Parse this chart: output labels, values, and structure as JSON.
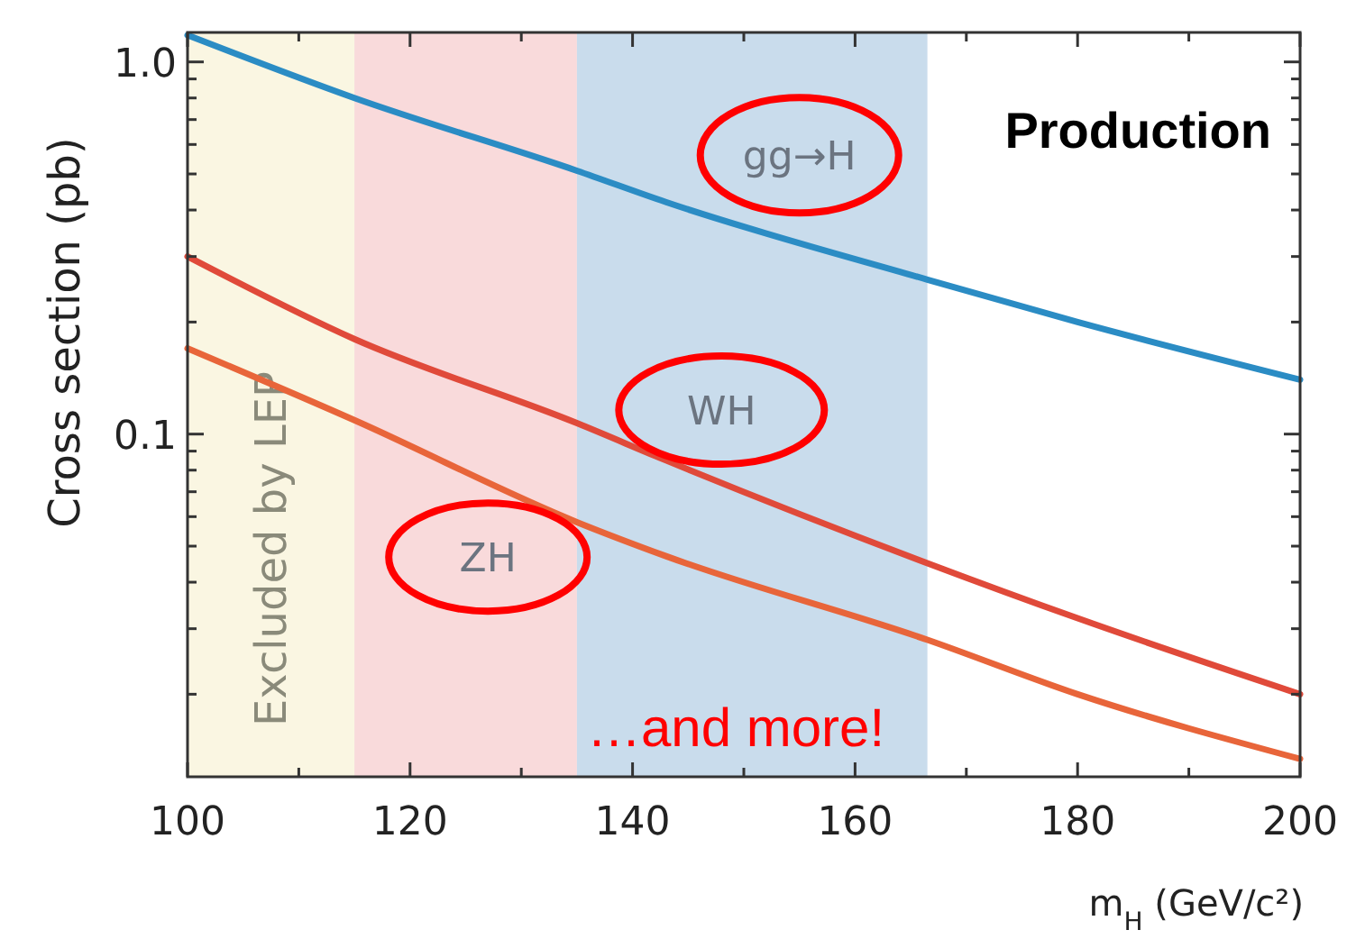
{
  "chart_data": {
    "type": "line",
    "xlabel": "m$_{H}$  (GeV/c²)",
    "ylabel": "Cross section (pb)",
    "log": "y",
    "xlim": [
      100,
      200
    ],
    "ylim": [
      0.012,
      1.2
    ],
    "xticks": [
      100,
      {
        "value": 110,
        "label": null
      },
      120,
      {
        "value": 130,
        "label": null
      },
      140,
      {
        "value": 150,
        "label": null
      },
      160,
      {
        "value": 170,
        "label": null
      },
      180,
      {
        "value": 190,
        "label": null
      },
      200
    ],
    "yticks": [
      {
        "value": 0.02,
        "label": null
      },
      {
        "value": 0.03,
        "label": null
      },
      {
        "value": 0.04,
        "label": null
      },
      {
        "value": 0.05,
        "label": null
      },
      {
        "value": 0.06,
        "label": null
      },
      {
        "value": 0.07,
        "label": null
      },
      {
        "value": 0.08,
        "label": null
      },
      {
        "value": 0.09,
        "label": null
      },
      0.1,
      {
        "value": 0.2,
        "label": null
      },
      {
        "value": 0.3,
        "label": null
      },
      {
        "value": 0.4,
        "label": null
      },
      {
        "value": 0.5,
        "label": null
      },
      {
        "value": 0.6,
        "label": null
      },
      {
        "value": 0.7,
        "label": null
      },
      {
        "value": 0.8,
        "label": null
      },
      {
        "value": 0.9,
        "label": null
      },
      {
        "value": 1,
        "label": "1.0"
      }
    ],
    "x": [
      100,
      115,
      135,
      143,
      166.5,
      180,
      200
    ],
    "series": [
      {
        "name": "gg→H",
        "color": "#2b8cc4",
        "values": [
          1.18,
          0.8,
          0.51,
          0.42,
          0.26,
          0.2,
          0.14
        ]
      },
      {
        "name": "WH",
        "color": "#e04a3a",
        "values": [
          0.3,
          0.18,
          0.107,
          0.085,
          0.045,
          0.032,
          0.02
        ]
      },
      {
        "name": "ZH",
        "color": "#e8653a",
        "values": [
          0.17,
          0.109,
          0.058,
          0.047,
          0.028,
          0.02,
          0.0134
        ]
      }
    ],
    "bands": [
      {
        "axis": "x",
        "from": 100,
        "to": 115,
        "label": "Excluded by LEP",
        "color": "#faf6e2"
      },
      {
        "axis": "x",
        "from": 115,
        "to": 135,
        "label": null,
        "color": "#f9dadb"
      },
      {
        "axis": "x",
        "from": 135,
        "to": 166.5,
        "label": null,
        "color": "#c9dcec"
      }
    ],
    "annotations": [
      "Production",
      "…and more!"
    ],
    "grid": false
  }
}
